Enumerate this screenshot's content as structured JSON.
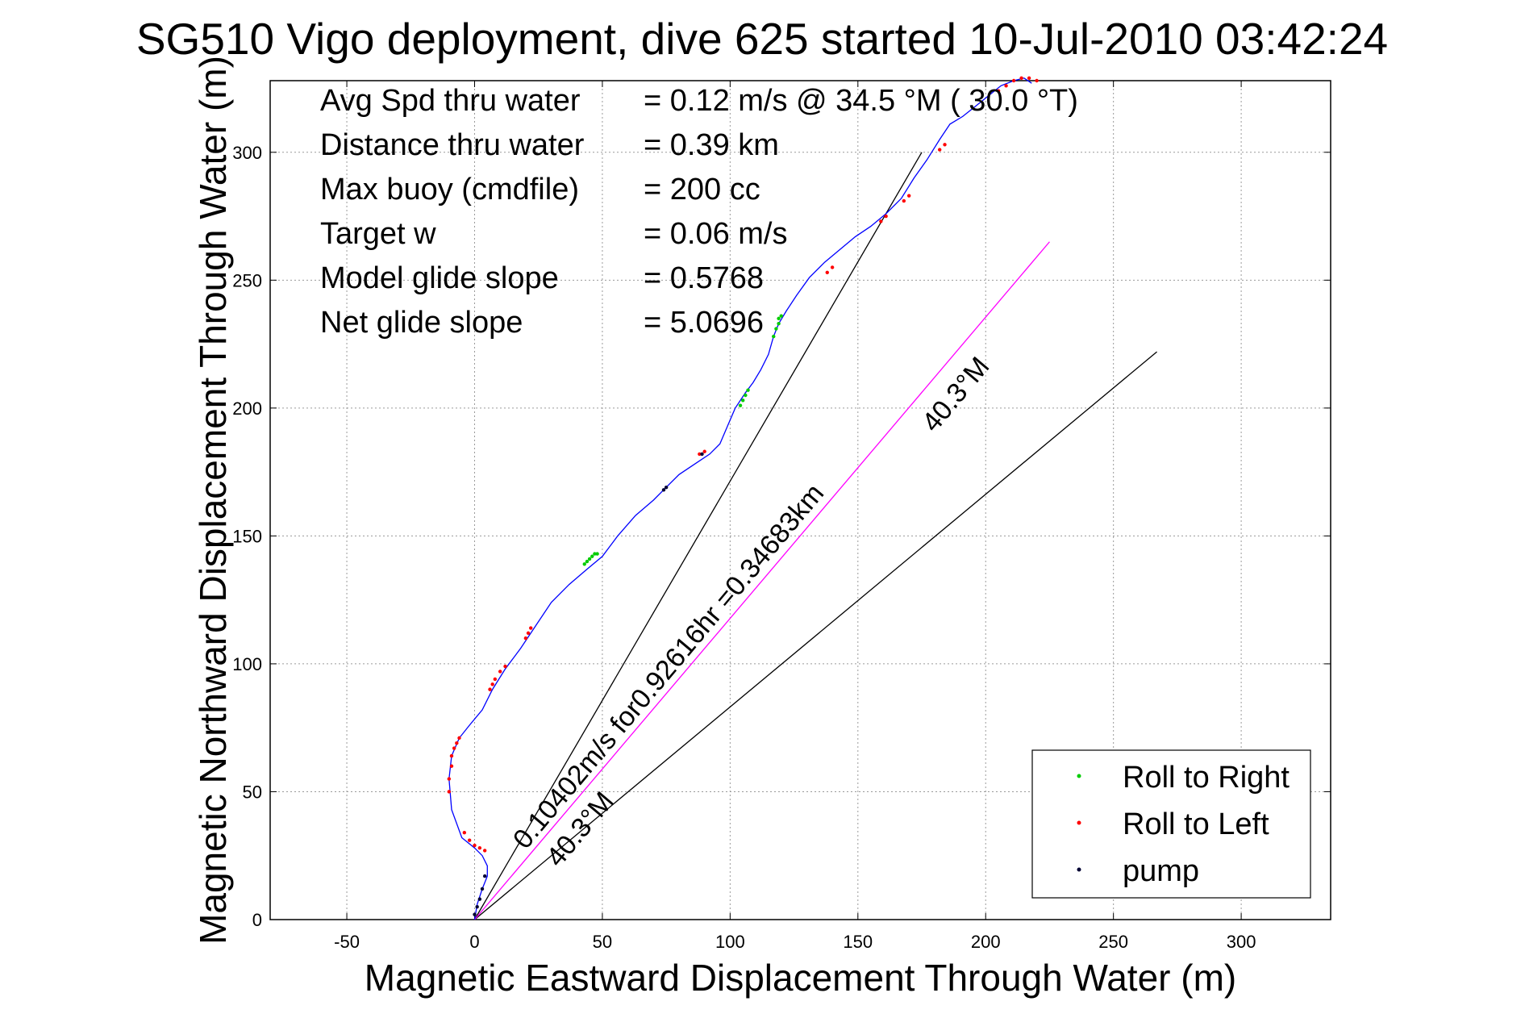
{
  "chart_data": {
    "type": "line",
    "title": "SG510 Vigo deployment, dive 625 started 10-Jul-2010 03:42:24",
    "xlabel": "Magnetic Eastward Displacement Through Water (m)",
    "ylabel": "Magnetic Northward Displacement Through Water (m)",
    "xlim": [
      -80,
      335
    ],
    "ylim": [
      0,
      328
    ],
    "x_ticks": [
      -50,
      0,
      50,
      100,
      150,
      200,
      250,
      300
    ],
    "y_ticks": [
      0,
      50,
      100,
      150,
      200,
      250,
      300
    ],
    "grid": true,
    "info": [
      {
        "label": "Avg Spd thru water",
        "value": "=  0.12 m/s @  34.5 °M ( 30.0 °T)"
      },
      {
        "label": "Distance thru water",
        "value": "=  0.39 km"
      },
      {
        "label": "Max buoy (cmdfile)",
        "value": "= 200 cc"
      },
      {
        "label": "Target w",
        "value": "= 0.06 m/s"
      },
      {
        "label": "Model glide slope",
        "value": "= 0.5768"
      },
      {
        "label": "Net glide slope",
        "value": "= 5.0696"
      }
    ],
    "track": {
      "color": "#0000ff",
      "x": [
        0,
        1,
        3,
        5,
        5,
        3,
        0,
        -5,
        -9,
        -10,
        -9,
        -6,
        -2,
        3,
        7,
        12,
        18,
        24,
        30,
        37,
        44,
        50,
        56,
        63,
        70,
        75,
        80,
        86,
        92,
        96,
        99,
        102,
        106,
        109,
        112,
        115,
        117,
        119,
        122,
        126,
        131,
        137,
        143,
        149,
        155,
        161,
        167,
        172,
        177,
        182,
        186,
        191,
        196,
        201,
        206,
        211,
        215,
        218
      ],
      "y": [
        0,
        6,
        12,
        17,
        21,
        25,
        28,
        32,
        43,
        55,
        64,
        71,
        76,
        82,
        90,
        98,
        106,
        115,
        124,
        131,
        137,
        142,
        150,
        158,
        164,
        169,
        174,
        178,
        182,
        186,
        193,
        200,
        206,
        210,
        215,
        221,
        228,
        233,
        238,
        244,
        251,
        257,
        262,
        267,
        271,
        276,
        282,
        290,
        297,
        305,
        311,
        314,
        318,
        322,
        326,
        328,
        329,
        327
      ]
    },
    "roll_right": {
      "color": "#00cc00",
      "x": [
        43,
        44,
        45,
        46,
        47,
        48,
        104,
        105,
        106,
        107,
        117,
        118,
        119,
        119,
        120
      ],
      "y": [
        139,
        140,
        141,
        142,
        143,
        143,
        201,
        203,
        205,
        207,
        228,
        231,
        233,
        235,
        236
      ]
    },
    "roll_left": {
      "color": "#ff0000",
      "x": [
        -10,
        -10,
        -9,
        -9,
        -8,
        -7,
        -6,
        -4,
        -2,
        0,
        2,
        4,
        6,
        7,
        8,
        10,
        12,
        20,
        21,
        22,
        88,
        90,
        138,
        140,
        159,
        161,
        168,
        170,
        182,
        184,
        205,
        208,
        211,
        214,
        217,
        220
      ],
      "y": [
        50,
        55,
        60,
        64,
        67,
        69,
        71,
        34,
        31,
        29,
        28,
        27,
        90,
        92,
        94,
        97,
        99,
        110,
        112,
        114,
        182,
        183,
        253,
        255,
        273,
        275,
        281,
        283,
        301,
        303,
        324,
        326,
        328,
        329,
        329,
        328
      ]
    },
    "pump": {
      "color": "#000033",
      "x": [
        0,
        1,
        2,
        3,
        4,
        74,
        75,
        89
      ],
      "y": [
        2,
        5,
        8,
        12,
        17,
        168,
        169,
        182
      ]
    },
    "lines": [
      {
        "name": "black-line-steep",
        "color": "#000000",
        "x": [
          0,
          175
        ],
        "y": [
          0,
          300
        ]
      },
      {
        "name": "black-line-shallow",
        "color": "#000000",
        "x": [
          0,
          267
        ],
        "y": [
          0,
          222
        ]
      },
      {
        "name": "magenta-line",
        "color": "#ff00ff",
        "x": [
          0,
          225
        ],
        "y": [
          0,
          265
        ]
      }
    ],
    "annotations": [
      {
        "text": "0.10402m/s for0.92616hr =0.34683km",
        "x": 20,
        "y": 27,
        "rotation": -50
      },
      {
        "text": "40.3°M",
        "x": 33,
        "y": 20,
        "rotation": -50
      },
      {
        "text": "40.3°M",
        "x": 180,
        "y": 190,
        "rotation": -50
      }
    ],
    "legend": {
      "position": "bottom-right",
      "entries": [
        {
          "label": "Roll to Right",
          "color": "#00cc00"
        },
        {
          "label": "Roll to Left",
          "color": "#ff0000"
        },
        {
          "label": "pump",
          "color": "#000033"
        }
      ]
    }
  }
}
